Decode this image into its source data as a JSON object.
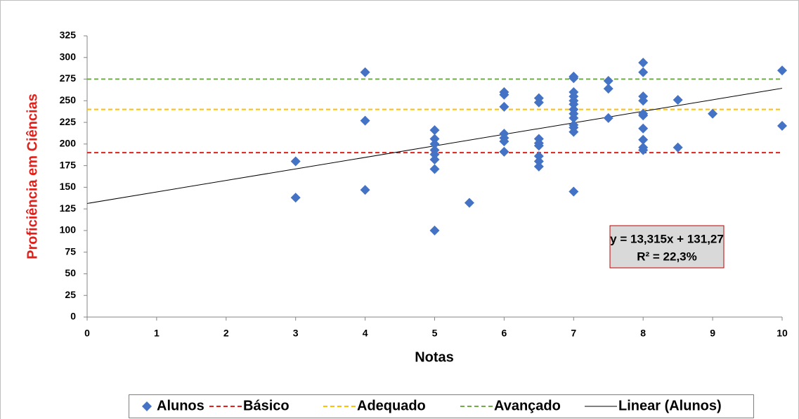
{
  "chart_data": {
    "type": "scatter",
    "xlabel": "Notas",
    "ylabel": "Proficiência em Ciências",
    "ylabel_color": "#e0201b",
    "xlim": [
      0,
      10
    ],
    "ylim": [
      0,
      325
    ],
    "xticks": [
      0,
      1,
      2,
      3,
      4,
      5,
      6,
      7,
      8,
      9,
      10
    ],
    "yticks": [
      0,
      25,
      50,
      75,
      100,
      125,
      150,
      175,
      200,
      225,
      250,
      275,
      300,
      325
    ],
    "grid": false,
    "legend": "bottom",
    "annotations": [
      "y = 13,315x + 131,27",
      "R² = 22,3%"
    ],
    "series": [
      {
        "name": "Alunos",
        "type": "scatter",
        "marker": "diamond",
        "color": "#4472c4",
        "x": [
          3,
          3,
          4,
          4,
          4,
          5,
          5,
          5,
          5,
          5,
          5,
          5,
          5,
          5.5,
          6,
          6,
          6,
          6,
          6,
          6,
          6,
          6.5,
          6.5,
          6.5,
          6.5,
          6.5,
          6.5,
          6.5,
          6.5,
          7,
          7,
          7,
          7,
          7,
          7,
          7,
          7,
          7,
          7,
          7,
          7,
          7,
          7.5,
          7.5,
          7.5,
          8,
          8,
          8,
          8,
          8,
          8,
          8,
          8,
          8,
          8,
          8.5,
          8.5,
          9,
          10,
          10
        ],
        "values": [
          180,
          138,
          283,
          227,
          147,
          216,
          206,
          200,
          193,
          188,
          182,
          171,
          100,
          132,
          260,
          257,
          243,
          212,
          207,
          203,
          191,
          253,
          248,
          206,
          201,
          198,
          186,
          180,
          174,
          278,
          276,
          260,
          255,
          250,
          246,
          240,
          235,
          230,
          222,
          219,
          214,
          145,
          273,
          264,
          230,
          294,
          283,
          255,
          250,
          235,
          233,
          218,
          205,
          196,
          193,
          251,
          196,
          235,
          285,
          221
        ]
      },
      {
        "name": "Básico",
        "type": "line",
        "style": "dashed",
        "color": "#e0201b",
        "x": [
          0,
          10
        ],
        "values": [
          190,
          190
        ]
      },
      {
        "name": "Adequado",
        "type": "line",
        "style": "dashed",
        "color": "#ffc000",
        "x": [
          0,
          10
        ],
        "values": [
          240,
          240
        ]
      },
      {
        "name": "Avançado",
        "type": "line",
        "style": "dashed",
        "color": "#70ad47",
        "x": [
          0,
          10
        ],
        "values": [
          275,
          275
        ]
      },
      {
        "name": "Linear (Alunos)",
        "type": "line",
        "style": "solid",
        "color": "#000000",
        "x": [
          0,
          10
        ],
        "values": [
          131.27,
          264.42
        ]
      }
    ]
  }
}
